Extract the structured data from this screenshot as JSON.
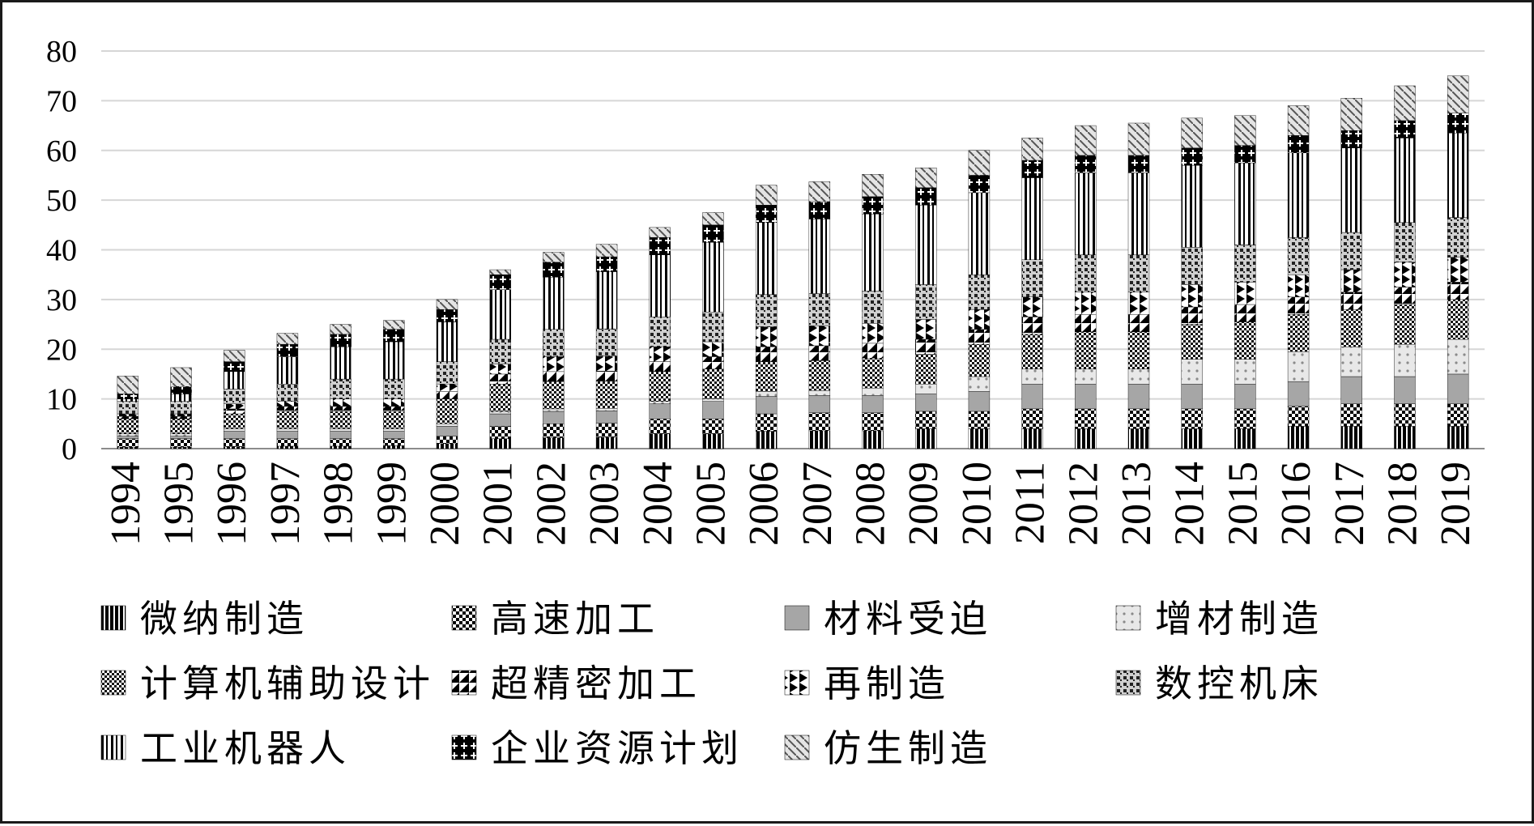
{
  "chart_data": {
    "type": "bar",
    "stacked": true,
    "title": "",
    "xlabel": "",
    "ylabel": "",
    "ylim": [
      0,
      80
    ],
    "yticks": [
      0,
      10,
      20,
      30,
      40,
      50,
      60,
      70,
      80
    ],
    "grid": true,
    "legend_position": "bottom",
    "categories": [
      "1994",
      "1995",
      "1996",
      "1997",
      "1998",
      "1999",
      "2000",
      "2001",
      "2002",
      "2003",
      "2004",
      "2005",
      "2006",
      "2007",
      "2008",
      "2009",
      "2010",
      "2011",
      "2012",
      "2013",
      "2014",
      "2015",
      "2016",
      "2017",
      "2018",
      "2019"
    ],
    "series": [
      {
        "name": "微纳制造",
        "pattern": "vbars-bold",
        "values": [
          0.3,
          0.3,
          0.4,
          0.5,
          0.5,
          0.6,
          1.0,
          2.0,
          2.2,
          2.3,
          3.0,
          3.0,
          3.5,
          3.6,
          3.6,
          4.0,
          4.0,
          4.0,
          4.0,
          4.0,
          4.0,
          4.0,
          4.5,
          4.5,
          4.5,
          4.5
        ]
      },
      {
        "name": "高速加工",
        "pattern": "checker",
        "values": [
          1.7,
          1.7,
          1.6,
          1.5,
          1.5,
          1.4,
          1.5,
          2.5,
          2.8,
          2.8,
          3.0,
          3.0,
          3.5,
          3.6,
          3.6,
          3.5,
          3.5,
          4.0,
          4.0,
          4.0,
          4.0,
          4.0,
          4.0,
          4.5,
          4.5,
          4.5
        ]
      },
      {
        "name": "材料受迫",
        "pattern": "solid-gray",
        "values": [
          0.5,
          0.5,
          1.5,
          1.5,
          1.5,
          1.5,
          2.0,
          2.5,
          2.5,
          2.5,
          3.0,
          3.5,
          3.5,
          3.5,
          3.5,
          3.5,
          4.0,
          5.0,
          5.0,
          5.0,
          5.0,
          5.0,
          5.0,
          5.5,
          5.5,
          6.0
        ]
      },
      {
        "name": "增材制造",
        "pattern": "dots-light",
        "values": [
          0.5,
          0.5,
          0.5,
          0.5,
          0.5,
          0.5,
          0.5,
          0.5,
          0.5,
          0.5,
          0.5,
          0.5,
          1.0,
          1.0,
          1.5,
          2.0,
          3.0,
          3.0,
          3.0,
          3.0,
          5.0,
          5.0,
          6.0,
          6.0,
          6.5,
          7.0
        ]
      },
      {
        "name": "计算机辅助设计",
        "pattern": "dense-check",
        "values": [
          3.0,
          3.0,
          3.0,
          3.5,
          3.5,
          3.5,
          5.0,
          5.5,
          5.5,
          5.5,
          6.0,
          6.0,
          6.0,
          6.0,
          6.0,
          6.0,
          6.5,
          7.0,
          7.5,
          7.5,
          7.0,
          7.5,
          7.5,
          7.5,
          8.0,
          8.0
        ]
      },
      {
        "name": "超精密加工",
        "pattern": "half-diag",
        "values": [
          0.5,
          0.5,
          1.0,
          1.0,
          1.0,
          1.0,
          1.5,
          2.0,
          2.0,
          2.0,
          2.0,
          2.5,
          3.0,
          3.0,
          3.0,
          3.0,
          3.0,
          3.5,
          3.5,
          3.5,
          3.5,
          3.5,
          3.5,
          3.5,
          3.5,
          3.5
        ]
      },
      {
        "name": "再制造",
        "pattern": "triangles",
        "values": [
          0.5,
          0.5,
          1.0,
          1.0,
          1.5,
          1.5,
          1.5,
          2.0,
          3.0,
          3.0,
          3.0,
          3.0,
          4.0,
          4.0,
          4.0,
          4.0,
          4.0,
          4.0,
          4.5,
          4.5,
          4.5,
          4.5,
          4.5,
          4.5,
          5.0,
          5.0
        ]
      },
      {
        "name": "数控机床",
        "pattern": "diag-check",
        "values": [
          2.5,
          2.5,
          3.0,
          3.5,
          4.0,
          4.0,
          4.5,
          5.0,
          5.5,
          5.5,
          6.0,
          6.0,
          6.5,
          6.5,
          6.5,
          7.0,
          7.0,
          7.5,
          7.5,
          7.5,
          7.5,
          7.5,
          7.5,
          7.5,
          8.0,
          8.0
        ]
      },
      {
        "name": "工业机器人",
        "pattern": "vbars-wide",
        "values": [
          0.5,
          1.5,
          3.5,
          5.5,
          6.5,
          7.5,
          8.0,
          10.0,
          10.5,
          11.5,
          12.5,
          14.0,
          14.5,
          15.0,
          15.5,
          16.0,
          16.5,
          16.5,
          16.5,
          16.5,
          16.5,
          16.5,
          17.0,
          17.0,
          17.0,
          17.0
        ]
      },
      {
        "name": "企业资源计划",
        "pattern": "plus-check",
        "values": [
          1.0,
          1.5,
          2.0,
          2.5,
          2.5,
          2.5,
          2.5,
          3.0,
          3.0,
          3.0,
          3.5,
          3.5,
          3.5,
          3.5,
          3.5,
          3.5,
          3.5,
          3.5,
          3.5,
          3.5,
          3.5,
          3.5,
          3.5,
          3.5,
          3.5,
          4.0
        ]
      },
      {
        "name": "仿生制造",
        "pattern": "diag-light",
        "values": [
          3.6,
          3.8,
          2.3,
          2.2,
          2.0,
          1.8,
          2.0,
          1.0,
          2.0,
          2.5,
          2.0,
          2.5,
          4.0,
          4.0,
          4.5,
          4.0,
          5.0,
          4.5,
          6.0,
          6.5,
          6.0,
          6.0,
          6.0,
          6.5,
          7.0,
          7.5
        ]
      }
    ]
  }
}
